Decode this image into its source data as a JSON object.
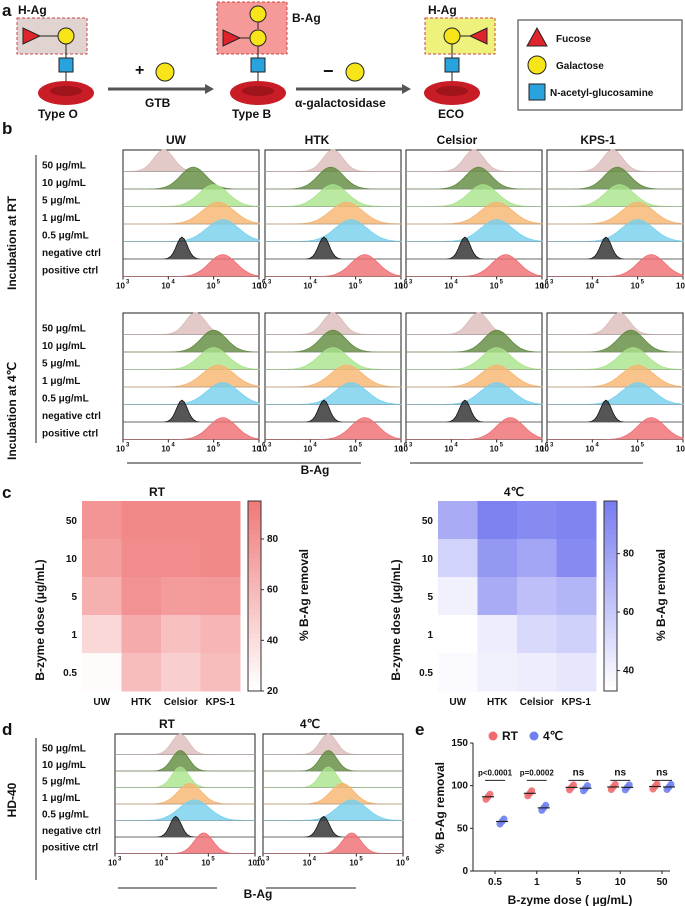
{
  "panel_letters": {
    "a": "a",
    "b": "b",
    "c": "c",
    "d": "d",
    "e": "e"
  },
  "panel_a": {
    "antigens": {
      "h_ag": "H-Ag",
      "b_ag": "B-Ag",
      "h_ag_2": "H-Ag"
    },
    "cells": {
      "type_o": "Type O",
      "type_b": "Type B",
      "eco": "ECO"
    },
    "step1": {
      "sign": "+",
      "enzyme": "GTB"
    },
    "step2": {
      "sign": "−",
      "enzyme": "α-galactosidase"
    },
    "legend": [
      {
        "shape": "triangle",
        "color": "#e0242c",
        "label": "Fucose"
      },
      {
        "shape": "circle",
        "color": "#f7e51a",
        "label": "Galactose"
      },
      {
        "shape": "square",
        "color": "#29a3dd",
        "label": "N-acetyl-glucosamine"
      }
    ],
    "colors": {
      "h_box": "#e0d3d0",
      "b_box": "#f59a98",
      "eco_box": "#eef27c",
      "rbc": "#c81c26"
    }
  },
  "panel_b": {
    "columns": [
      "UW",
      "HTK",
      "Celsior",
      "KPS-1"
    ],
    "group_labels": [
      "Incubation at RT",
      "Incubation at 4℃"
    ],
    "row_labels": [
      "50 μg/mL",
      "10 μg/mL",
      "5 μg/mL",
      "1 μg/mL",
      "0.5 μg/mL",
      "negative ctrl",
      "positive ctrl"
    ],
    "row_colors": [
      "#dcbcba",
      "#5f8a3d",
      "#a9e48b",
      "#f7b46f",
      "#76d0ee",
      "#2b2b2b",
      "#ef6b70"
    ],
    "x_axis_label": "B-Ag",
    "x_tick_base": "10",
    "x_tick_exps": [
      "3",
      "4",
      "5",
      "6"
    ]
  },
  "panel_c": {
    "y_axis_label": "B-zyme dose (μg/mL)",
    "doses": [
      "50",
      "10",
      "5",
      "1",
      "0.5"
    ],
    "columns": [
      "UW",
      "HTK",
      "Celsior",
      "KPS-1"
    ],
    "heatmaps": [
      {
        "title": "RT",
        "color": "#f07b7b",
        "values": [
          [
            80,
            87,
            87,
            87
          ],
          [
            75,
            86,
            86,
            87
          ],
          [
            65,
            82,
            76,
            78
          ],
          [
            42,
            68,
            56,
            62
          ],
          [
            22,
            58,
            48,
            58
          ]
        ],
        "colorbar_label": "% B-Ag removal",
        "colorbar_ticks": [
          "80",
          "60",
          "40",
          "20"
        ],
        "range": [
          20,
          95
        ]
      },
      {
        "title": "4℃",
        "color": "#7a7ef0",
        "values": [
          [
            75,
            96,
            92,
            95
          ],
          [
            55,
            85,
            78,
            92
          ],
          [
            40,
            75,
            65,
            70
          ],
          [
            33,
            42,
            52,
            56
          ],
          [
            35,
            40,
            42,
            45
          ]
        ],
        "colorbar_label": "% B-Ag removal",
        "colorbar_ticks": [
          "80",
          "60",
          "40"
        ],
        "range": [
          33,
          98
        ]
      }
    ]
  },
  "panel_d": {
    "side_label": "HD-40",
    "columns": [
      "RT",
      "4℃"
    ],
    "row_labels": [
      "50 μg/mL",
      "10 μg/mL",
      "5 μg/mL",
      "1 μg/mL",
      "0.5 μg/mL",
      "negative ctrl",
      "positive ctrl"
    ],
    "x_axis_label": "B-Ag"
  },
  "chart_data": {
    "type": "scatter",
    "title": "",
    "xlabel": "B-zyme dose ( μg/mL)",
    "ylabel": "% B-Ag removal",
    "ylim": [
      0,
      150
    ],
    "y_ticks": [
      "0",
      "50",
      "100",
      "150"
    ],
    "categories": [
      "0.5",
      "1",
      "5",
      "10",
      "50"
    ],
    "series": [
      {
        "name": "RT",
        "color": "#f06b70",
        "values": [
          87,
          91,
          98,
          98.5,
          99
        ]
      },
      {
        "name": "4℃",
        "color": "#6f7fef",
        "values": [
          58,
          74,
          97,
          98,
          98.5
        ]
      }
    ],
    "annotations": [
      "p<0.0001",
      "p=0.0002",
      "ns",
      "ns",
      "ns"
    ]
  }
}
